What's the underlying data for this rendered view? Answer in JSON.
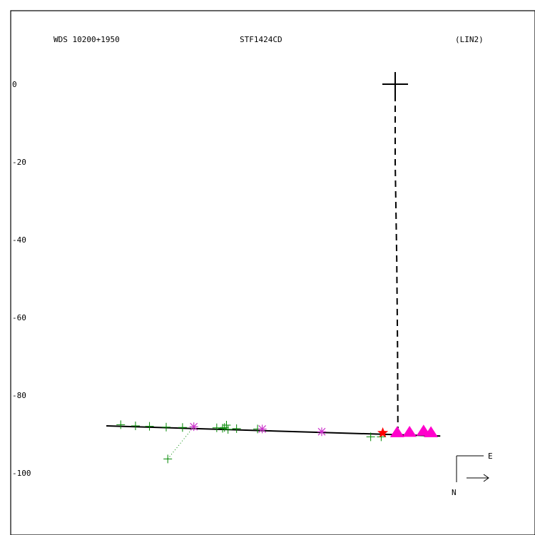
{
  "header": {
    "left": "WDS 10200+1950",
    "center": "STF1424CD",
    "right": "(LIN2)"
  },
  "compass": {
    "east": "E",
    "north": "N"
  },
  "chart_data": {
    "type": "scatter",
    "ylim": [
      -111,
      9
    ],
    "yticks": [
      0,
      -20,
      -40,
      -60,
      -80,
      -100
    ],
    "ytick_labels": [
      "0",
      "-20",
      "-40",
      "-60",
      "-80",
      "-100"
    ],
    "grid": false,
    "colors": {
      "green": "#008800",
      "magenta": "#cc33cc",
      "red": "#ff0000",
      "pink": "#ff00cc",
      "black": "#000000"
    },
    "origin": {
      "x": 0.0,
      "y": 0.0
    },
    "fit_line": [
      [
        -74.3,
        -87.9
      ],
      [
        11.6,
        -90.5
      ]
    ],
    "dashed_line": [
      [
        0.0,
        0.0
      ],
      [
        0.0,
        -20.0
      ],
      [
        0.4,
        -45.0
      ],
      [
        0.6,
        -67.0
      ],
      [
        0.7,
        -89.7
      ]
    ],
    "dotted_line": [
      [
        -58.5,
        -96.4
      ],
      [
        -51.8,
        -88.1
      ]
    ],
    "plus_points": [
      [
        -70.6,
        -87.6
      ],
      [
        -66.8,
        -87.9
      ],
      [
        -63.2,
        -88.0
      ],
      [
        -58.9,
        -88.2
      ],
      [
        -54.7,
        -88.3
      ],
      [
        -45.9,
        -88.4
      ],
      [
        -44.4,
        -88.5
      ],
      [
        -43.9,
        -88.3
      ],
      [
        -43.4,
        -87.7
      ],
      [
        -43.0,
        -88.8
      ],
      [
        -40.8,
        -88.6
      ],
      [
        -35.4,
        -88.7
      ],
      [
        -6.3,
        -90.7
      ],
      [
        -3.6,
        -90.7
      ],
      [
        -58.5,
        -96.4
      ]
    ],
    "star_points": [
      [
        -51.8,
        -88.1
      ],
      [
        -34.2,
        -88.7
      ],
      [
        -18.9,
        -89.4
      ]
    ],
    "red_star": [
      -3.2,
      -89.7
    ],
    "triangle_points": [
      [
        0.5,
        -89.8
      ],
      [
        3.7,
        -89.7
      ],
      [
        7.3,
        -89.4
      ],
      [
        9.2,
        -89.8
      ]
    ],
    "arrow_direction": "east"
  }
}
